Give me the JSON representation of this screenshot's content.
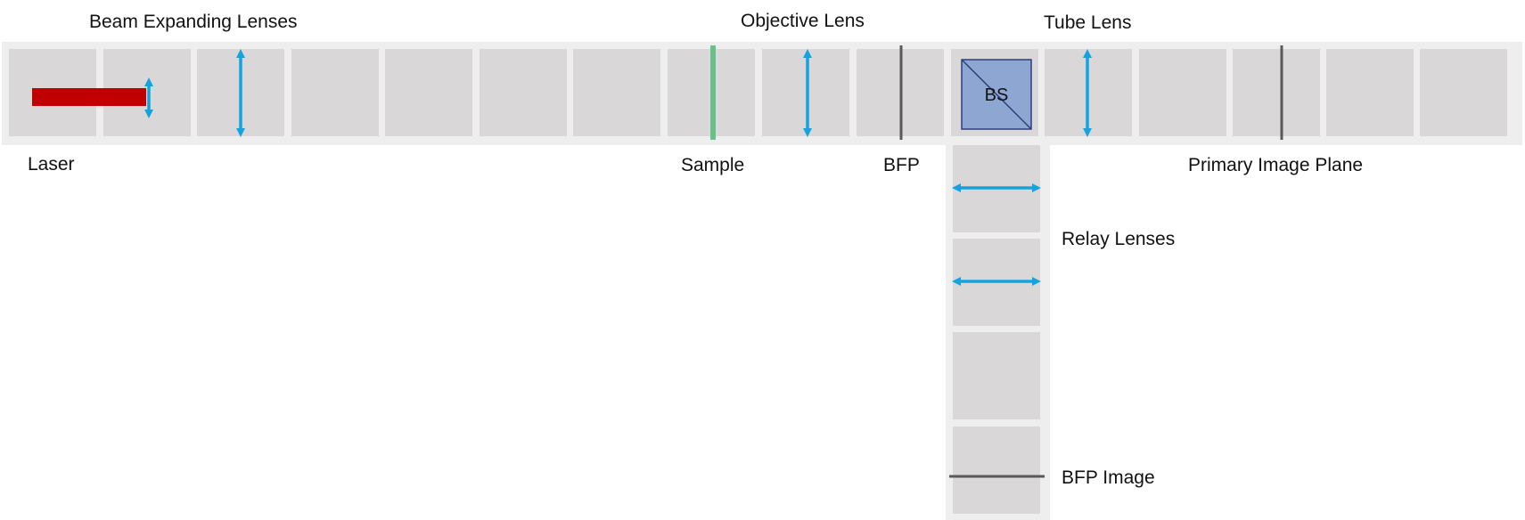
{
  "labels": {
    "beam_expanding_lenses": "Beam Expanding Lenses",
    "objective_lens": "Objective Lens",
    "tube_lens": "Tube Lens",
    "laser": "Laser",
    "sample": "Sample",
    "bfp": "BFP",
    "primary_image_plane": "Primary Image Plane",
    "relay_lenses": "Relay Lenses",
    "bfp_image": "BFP Image",
    "beam_splitter": "BS"
  },
  "colors": {
    "rail": "#eeeeee",
    "cell": "#d9d7d8",
    "lens": "#15a3e0",
    "laser": "#c00000",
    "sample": "#66c18c",
    "plane": "#595959",
    "bs_fill": "#8ea6d2",
    "bs_stroke": "#2f3f7a"
  },
  "icons": {
    "lens": "double-arrow-lens-icon",
    "beam_splitter": "beam-splitter-cube-icon",
    "laser": "laser-bar-icon"
  }
}
